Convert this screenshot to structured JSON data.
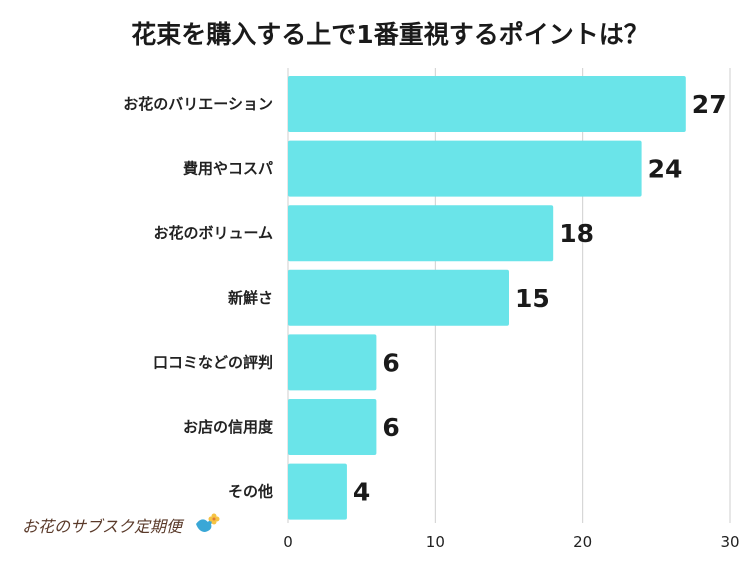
{
  "chart_data": {
    "type": "bar",
    "orientation": "horizontal",
    "title": "花束を購入する上で1番重視するポイントは？",
    "categories": [
      "お花のバリエーション",
      "費用やコスパ",
      "お花のボリューム",
      "新鮮さ",
      "口コミなどの評判",
      "お店の信用度",
      "その他"
    ],
    "values": [
      27,
      24,
      18,
      15,
      6,
      6,
      4
    ],
    "xlim": [
      0,
      30
    ],
    "xticks": [
      0,
      10,
      20,
      30
    ],
    "grid": true,
    "bar_color": "#6ae4e9",
    "grid_color": "#cfcfcf"
  },
  "logo": {
    "text": "お花のサブスク定期便",
    "accent_color": "#3aa7d6"
  }
}
